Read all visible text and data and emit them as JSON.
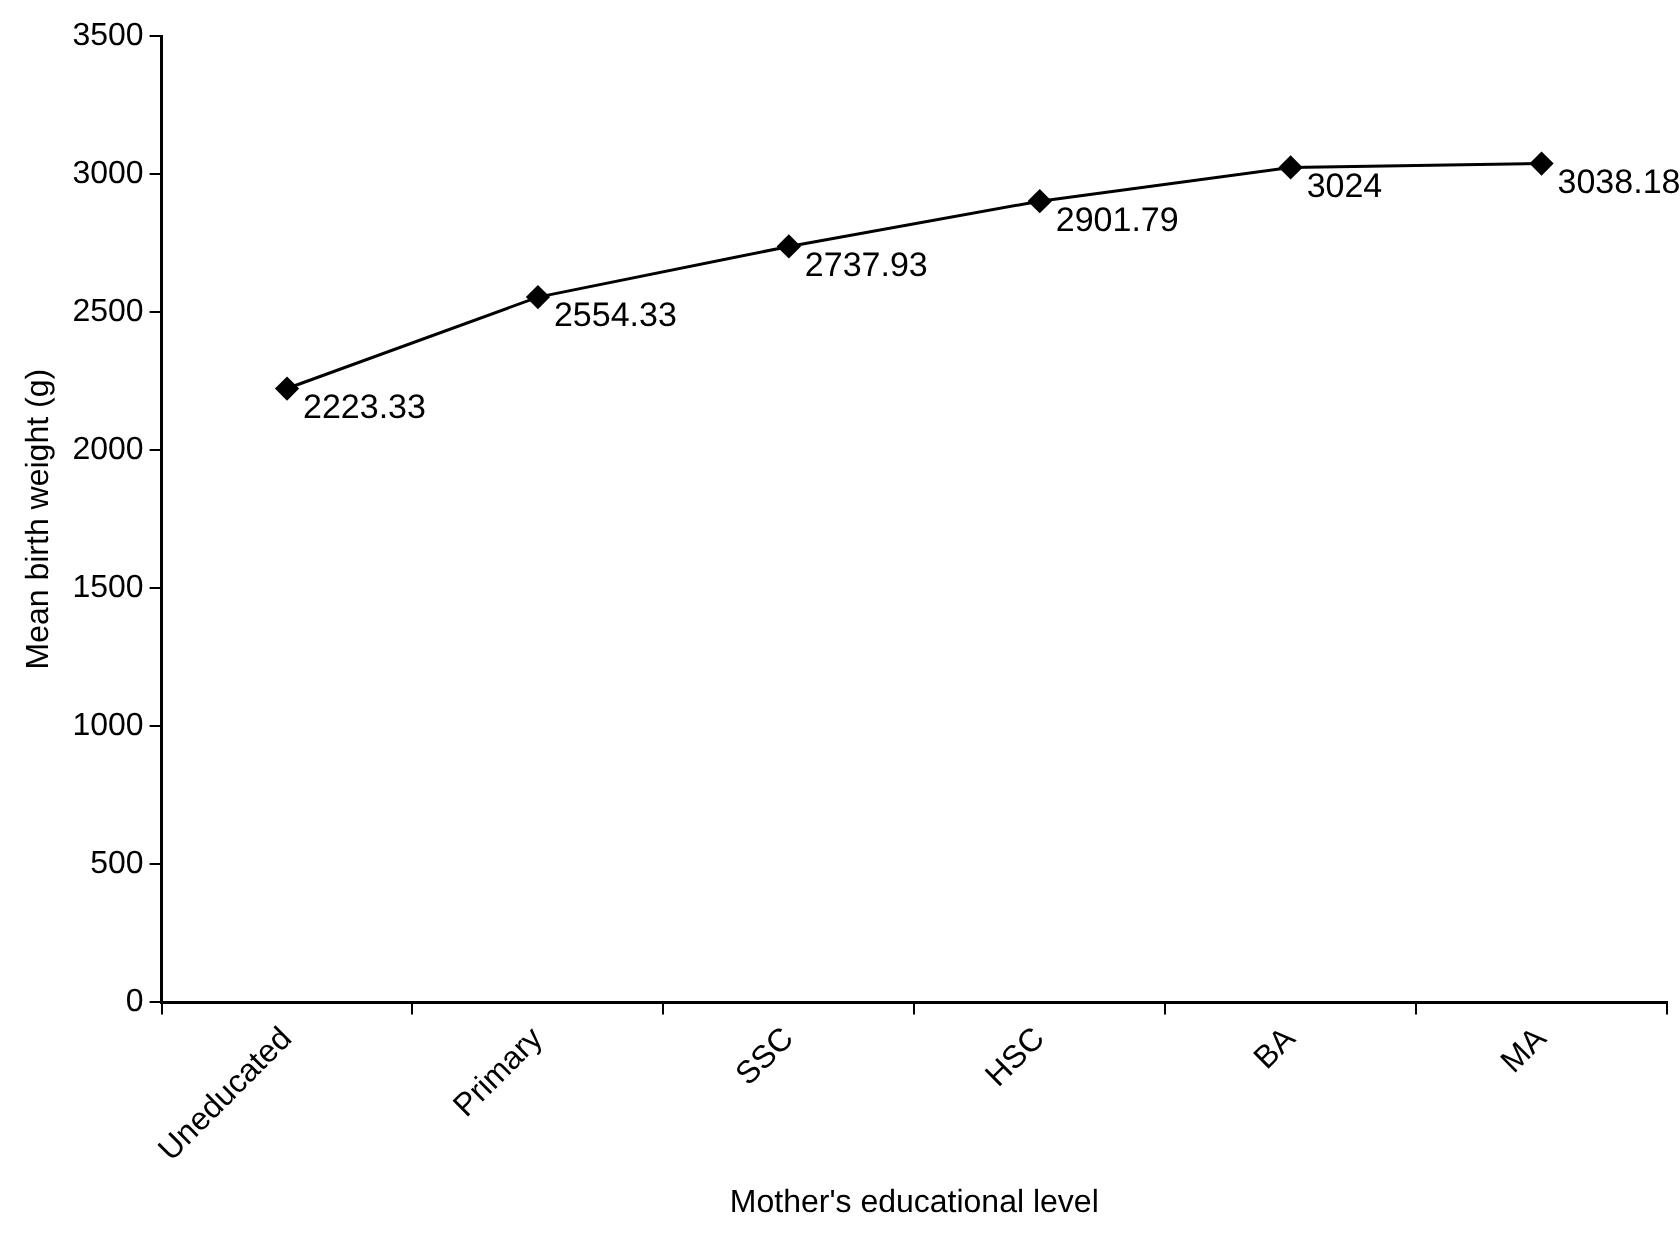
{
  "chart_data": {
    "type": "line",
    "xlabel": "Mother's educational level",
    "ylabel": "Mean birth weight (g)",
    "categories": [
      "Uneducated",
      "Primary",
      "SSC",
      "HSC",
      "BA",
      "MA"
    ],
    "series": [
      {
        "color": "#000000",
        "values": [
          2223.33,
          2554.33,
          2737.93,
          2901.79,
          3024,
          3038.18
        ]
      }
    ],
    "ylim": [
      0,
      3500
    ],
    "yticks": [
      0,
      500,
      1000,
      1500,
      2000,
      2500,
      3000,
      3500
    ],
    "data_labels": true,
    "marker": "diamond",
    "line_style": "solid"
  }
}
